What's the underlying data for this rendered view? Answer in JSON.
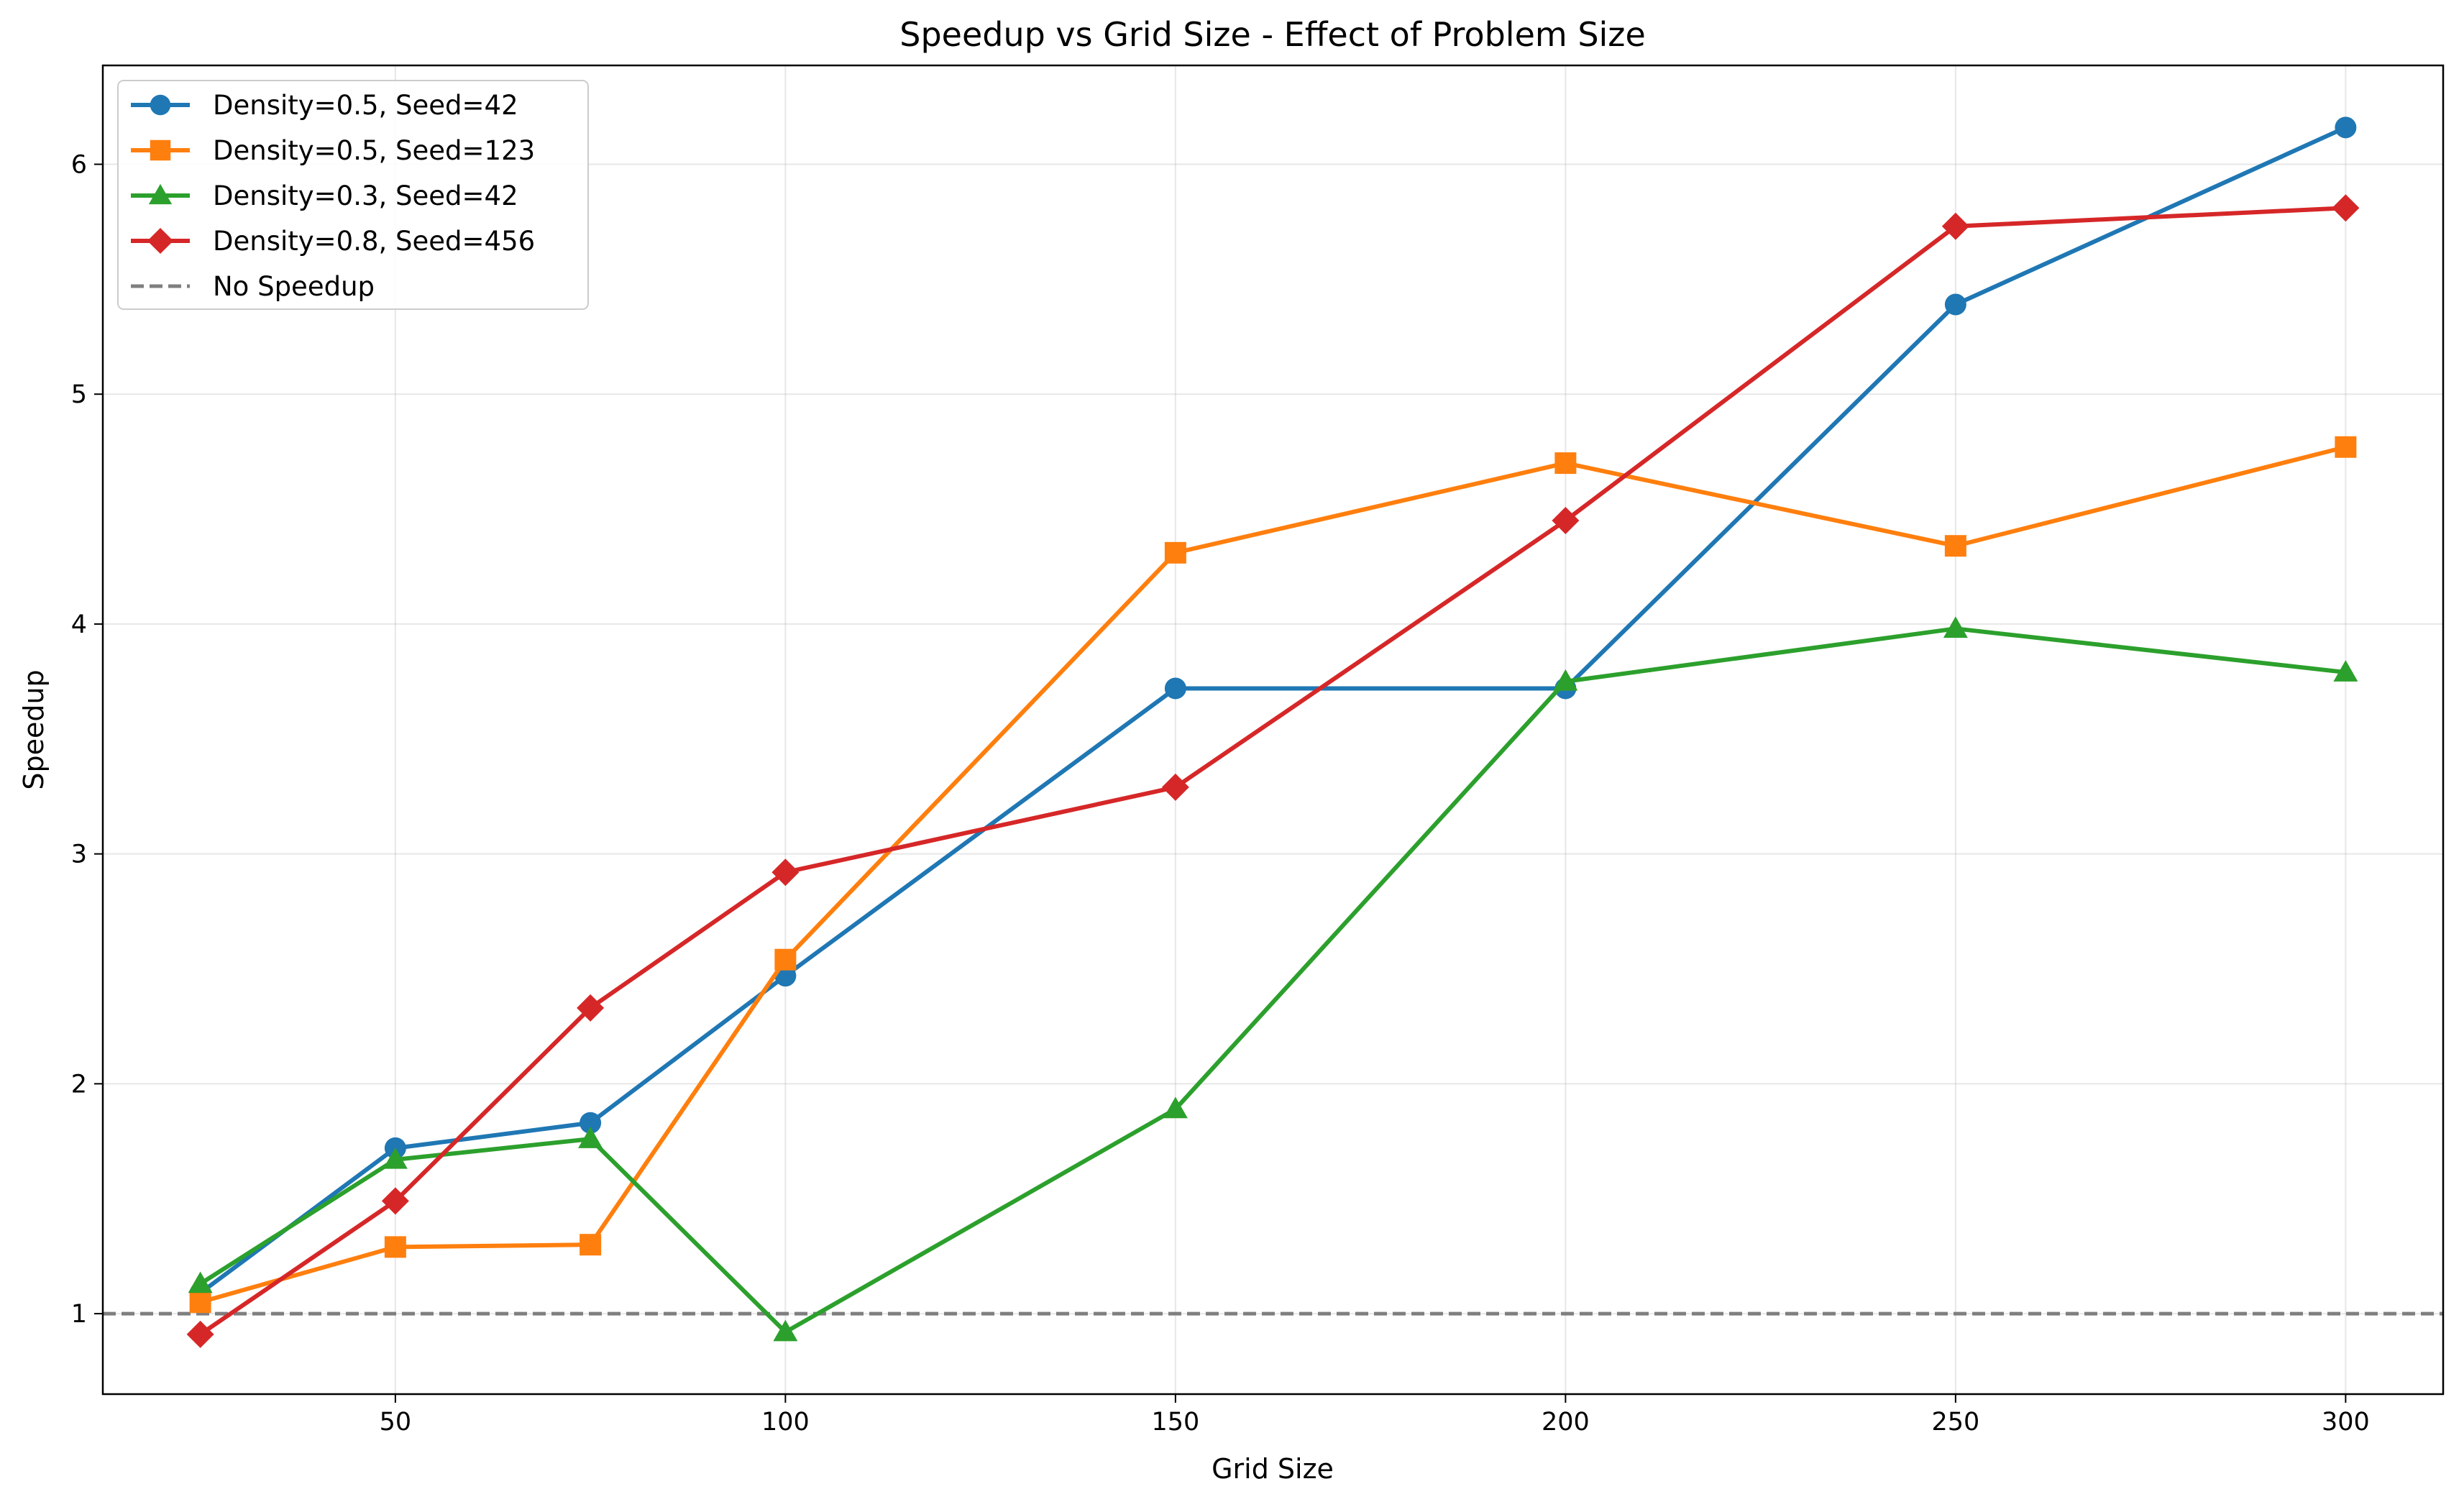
{
  "chart_data": {
    "type": "line",
    "title": "Speedup vs Grid Size - Effect of Problem Size",
    "xlabel": "Grid Size",
    "ylabel": "Speedup",
    "xlim": [
      12.5,
      312.5
    ],
    "ylim": [
      0.65,
      6.43
    ],
    "xticks": [
      50,
      100,
      150,
      200,
      250,
      300
    ],
    "yticks": [
      1,
      2,
      3,
      4,
      5,
      6
    ],
    "grid": true,
    "legend_position": "top-left",
    "x": [
      25,
      50,
      75,
      100,
      150,
      200,
      250,
      300
    ],
    "series": [
      {
        "name": "Density=0.5, Seed=42",
        "color": "#1f77b4",
        "marker": "circle",
        "values": [
          1.09,
          1.72,
          1.83,
          2.47,
          3.72,
          3.72,
          5.39,
          6.16
        ]
      },
      {
        "name": "Density=0.5, Seed=123",
        "color": "#ff7f0e",
        "marker": "square",
        "values": [
          1.05,
          1.29,
          1.3,
          2.54,
          4.31,
          4.7,
          4.34,
          4.77
        ]
      },
      {
        "name": "Density=0.3, Seed=42",
        "color": "#2ca02c",
        "marker": "triangle",
        "values": [
          1.13,
          1.67,
          1.76,
          0.92,
          1.89,
          3.75,
          3.98,
          3.79
        ]
      },
      {
        "name": "Density=0.8, Seed=456",
        "color": "#d62728",
        "marker": "diamond",
        "values": [
          0.91,
          1.49,
          2.33,
          2.92,
          3.29,
          4.45,
          5.73,
          5.81
        ]
      }
    ],
    "reference_line": {
      "name": "No Speedup",
      "y": 1,
      "color": "#7f7f7f",
      "style": "dashed"
    }
  }
}
